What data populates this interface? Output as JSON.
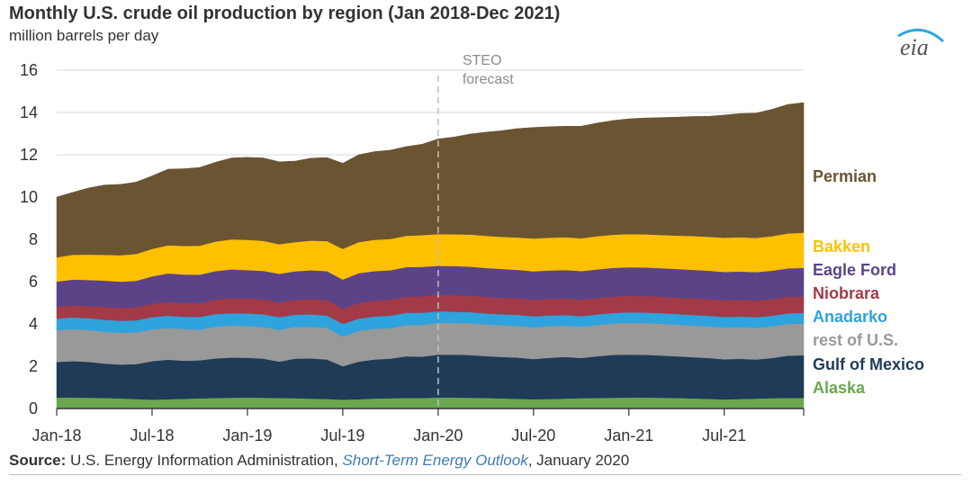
{
  "header": {
    "title": "Monthly U.S. crude oil production by region (Jan 2018-Dec 2021)",
    "subtitle": "million barrels per day"
  },
  "logo": {
    "text": "eia"
  },
  "source": {
    "label": "Source:",
    "text_before": "U.S. Energy Information Administration,",
    "link": "Short-Term Energy Outlook",
    "text_after": ", January 2020"
  },
  "chart_data": {
    "type": "area",
    "stacked": true,
    "title": "Monthly U.S. crude oil production by region (Jan 2018-Dec 2021)",
    "ylabel": "million barrels per day",
    "ylim": [
      0,
      16
    ],
    "yticks": [
      0,
      2,
      4,
      6,
      8,
      10,
      12,
      14,
      16
    ],
    "x_tick_labels": [
      "Jan-18",
      "Jul-18",
      "Jan-19",
      "Jul-19",
      "Jan-20",
      "Jul-20",
      "Jan-21",
      "Jul-21"
    ],
    "x_tick_index": [
      0,
      6,
      12,
      18,
      24,
      30,
      36,
      42
    ],
    "x": [
      "Jan-18",
      "Feb-18",
      "Mar-18",
      "Apr-18",
      "May-18",
      "Jun-18",
      "Jul-18",
      "Aug-18",
      "Sep-18",
      "Oct-18",
      "Nov-18",
      "Dec-18",
      "Jan-19",
      "Feb-19",
      "Mar-19",
      "Apr-19",
      "May-19",
      "Jun-19",
      "Jul-19",
      "Aug-19",
      "Sep-19",
      "Oct-19",
      "Nov-19",
      "Dec-19",
      "Jan-20",
      "Feb-20",
      "Mar-20",
      "Apr-20",
      "May-20",
      "Jun-20",
      "Jul-20",
      "Aug-20",
      "Sep-20",
      "Oct-20",
      "Nov-20",
      "Dec-20",
      "Jan-21",
      "Feb-21",
      "Mar-21",
      "Apr-21",
      "May-21",
      "Jun-21",
      "Jul-21",
      "Aug-21",
      "Sep-21",
      "Oct-21",
      "Nov-21",
      "Dec-21"
    ],
    "forecast_start_index": 24,
    "forecast_label": [
      "STEO",
      "forecast"
    ],
    "grid": true,
    "legend_position": "right",
    "series": [
      {
        "name": "Alaska",
        "color": "#6aa84f",
        "values": [
          0.52,
          0.52,
          0.51,
          0.5,
          0.48,
          0.45,
          0.42,
          0.44,
          0.46,
          0.48,
          0.5,
          0.51,
          0.52,
          0.51,
          0.5,
          0.49,
          0.47,
          0.45,
          0.42,
          0.44,
          0.47,
          0.49,
          0.5,
          0.5,
          0.52,
          0.52,
          0.51,
          0.5,
          0.48,
          0.46,
          0.44,
          0.45,
          0.47,
          0.49,
          0.5,
          0.51,
          0.52,
          0.52,
          0.51,
          0.5,
          0.48,
          0.46,
          0.43,
          0.45,
          0.47,
          0.49,
          0.5,
          0.5
        ]
      },
      {
        "name": "Gulf of Mexico",
        "color": "#1f3b57",
        "values": [
          1.68,
          1.72,
          1.7,
          1.63,
          1.6,
          1.65,
          1.82,
          1.87,
          1.8,
          1.8,
          1.87,
          1.9,
          1.88,
          1.85,
          1.72,
          1.87,
          1.9,
          1.87,
          1.58,
          1.78,
          1.85,
          1.87,
          1.97,
          1.95,
          2.03,
          2.03,
          2.02,
          1.98,
          1.96,
          1.95,
          1.9,
          1.95,
          1.97,
          1.9,
          1.97,
          2.03,
          2.03,
          2.02,
          2.0,
          1.97,
          1.95,
          1.93,
          1.9,
          1.9,
          1.85,
          1.9,
          2.0,
          2.02
        ]
      },
      {
        "name": "rest of U.S.",
        "color": "#999999",
        "values": [
          1.5,
          1.52,
          1.5,
          1.5,
          1.5,
          1.5,
          1.5,
          1.5,
          1.5,
          1.45,
          1.5,
          1.52,
          1.5,
          1.5,
          1.5,
          1.5,
          1.5,
          1.5,
          1.4,
          1.45,
          1.45,
          1.45,
          1.48,
          1.5,
          1.5,
          1.5,
          1.5,
          1.5,
          1.5,
          1.5,
          1.5,
          1.5,
          1.48,
          1.48,
          1.48,
          1.48,
          1.5,
          1.5,
          1.5,
          1.5,
          1.5,
          1.5,
          1.5,
          1.5,
          1.5,
          1.5,
          1.5,
          1.5
        ]
      },
      {
        "name": "Anadarko",
        "color": "#2ea3dd",
        "values": [
          0.55,
          0.55,
          0.56,
          0.57,
          0.57,
          0.57,
          0.58,
          0.58,
          0.58,
          0.6,
          0.6,
          0.58,
          0.6,
          0.6,
          0.6,
          0.58,
          0.58,
          0.58,
          0.6,
          0.58,
          0.58,
          0.58,
          0.58,
          0.58,
          0.55,
          0.53,
          0.53,
          0.52,
          0.52,
          0.52,
          0.52,
          0.5,
          0.5,
          0.5,
          0.5,
          0.5,
          0.5,
          0.5,
          0.5,
          0.5,
          0.5,
          0.5,
          0.5,
          0.5,
          0.5,
          0.5,
          0.5,
          0.5
        ]
      },
      {
        "name": "Niobrara",
        "color": "#a33a48",
        "values": [
          0.55,
          0.57,
          0.58,
          0.6,
          0.6,
          0.62,
          0.63,
          0.65,
          0.65,
          0.65,
          0.68,
          0.7,
          0.7,
          0.7,
          0.7,
          0.7,
          0.72,
          0.73,
          0.73,
          0.75,
          0.75,
          0.75,
          0.76,
          0.77,
          0.77,
          0.78,
          0.78,
          0.78,
          0.78,
          0.78,
          0.78,
          0.78,
          0.78,
          0.78,
          0.78,
          0.78,
          0.78,
          0.78,
          0.78,
          0.78,
          0.78,
          0.78,
          0.78,
          0.78,
          0.78,
          0.78,
          0.78,
          0.78
        ]
      },
      {
        "name": "Eagle Ford",
        "color": "#5c4387",
        "values": [
          1.2,
          1.22,
          1.23,
          1.25,
          1.25,
          1.25,
          1.3,
          1.35,
          1.35,
          1.35,
          1.35,
          1.37,
          1.35,
          1.35,
          1.35,
          1.35,
          1.37,
          1.37,
          1.37,
          1.4,
          1.4,
          1.4,
          1.4,
          1.4,
          1.38,
          1.38,
          1.37,
          1.37,
          1.36,
          1.35,
          1.35,
          1.35,
          1.35,
          1.35,
          1.35,
          1.35,
          1.35,
          1.35,
          1.35,
          1.35,
          1.35,
          1.35,
          1.35,
          1.35,
          1.35,
          1.35,
          1.35,
          1.35
        ]
      },
      {
        "name": "Bakken",
        "color": "#ffc000",
        "values": [
          1.15,
          1.17,
          1.2,
          1.22,
          1.25,
          1.27,
          1.3,
          1.33,
          1.35,
          1.37,
          1.4,
          1.42,
          1.43,
          1.42,
          1.4,
          1.38,
          1.4,
          1.42,
          1.45,
          1.47,
          1.48,
          1.48,
          1.48,
          1.5,
          1.5,
          1.5,
          1.52,
          1.52,
          1.52,
          1.53,
          1.55,
          1.55,
          1.55,
          1.55,
          1.57,
          1.57,
          1.57,
          1.57,
          1.57,
          1.58,
          1.6,
          1.6,
          1.62,
          1.62,
          1.62,
          1.63,
          1.65,
          1.67
        ]
      },
      {
        "name": "Permian",
        "color": "#6b5432",
        "values": [
          2.85,
          2.95,
          3.15,
          3.3,
          3.35,
          3.4,
          3.45,
          3.6,
          3.65,
          3.7,
          3.75,
          3.85,
          3.9,
          3.92,
          3.9,
          3.83,
          3.9,
          3.95,
          4.05,
          4.13,
          4.17,
          4.2,
          4.22,
          4.3,
          4.5,
          4.6,
          4.75,
          4.9,
          5.02,
          5.15,
          5.25,
          5.25,
          5.25,
          5.3,
          5.35,
          5.4,
          5.45,
          5.5,
          5.55,
          5.6,
          5.65,
          5.7,
          5.8,
          5.85,
          5.9,
          6.0,
          6.1,
          6.15
        ]
      }
    ]
  }
}
